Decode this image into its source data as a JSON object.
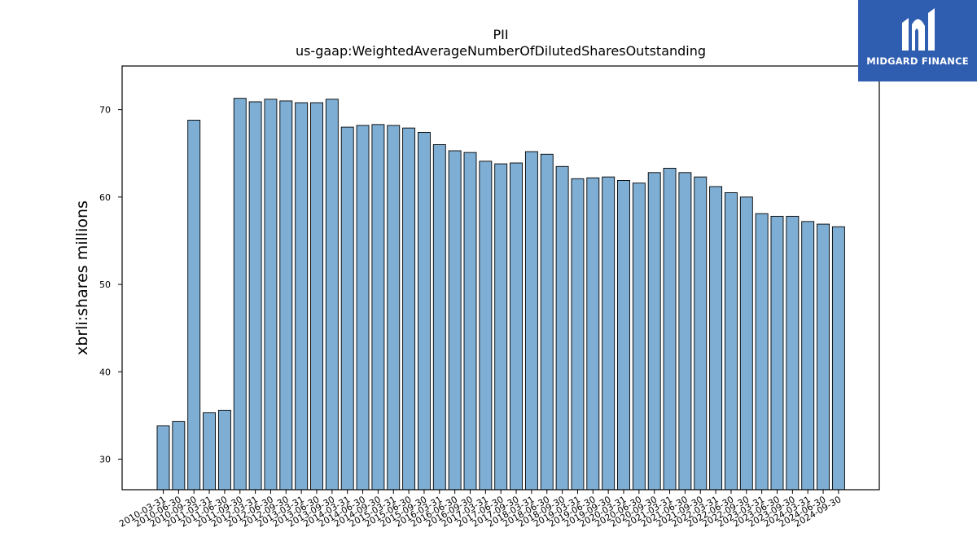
{
  "logo": {
    "text": "MIDGARD FINANCE"
  },
  "chart_data": {
    "type": "bar",
    "title": "PII",
    "subtitle": "us-gaap:WeightedAverageNumberOfDilutedSharesOutstanding",
    "xlabel": "",
    "ylabel": "xbrli:shares millions",
    "ylim": [
      26.5,
      75
    ],
    "yticks": [
      30,
      40,
      50,
      60,
      70
    ],
    "grid": false,
    "colors": {
      "bar_fill": "#7eaed3",
      "bar_edge": "#000000"
    },
    "categories": [
      "2010-03-31",
      "2010-06-30",
      "2010-09-30",
      "2011-03-31",
      "2011-06-30",
      "2011-09-30",
      "2012-03-31",
      "2012-06-30",
      "2012-09-30",
      "2013-03-31",
      "2013-06-30",
      "2013-09-30",
      "2014-03-31",
      "2014-06-30",
      "2014-09-30",
      "2015-03-31",
      "2015-06-30",
      "2015-09-30",
      "2016-03-31",
      "2016-06-30",
      "2016-09-30",
      "2017-03-31",
      "2017-06-30",
      "2017-09-30",
      "2018-03-31",
      "2018-06-30",
      "2018-09-30",
      "2019-03-31",
      "2019-06-30",
      "2019-09-30",
      "2020-03-31",
      "2020-06-30",
      "2020-09-30",
      "2021-03-31",
      "2021-06-30",
      "2021-09-30",
      "2022-03-31",
      "2022-06-30",
      "2022-09-30",
      "2023-03-31",
      "2023-06-30",
      "2023-09-30",
      "2024-03-31",
      "2024-06-30",
      "2024-09-30"
    ],
    "values": [
      33.8,
      34.3,
      68.8,
      35.3,
      35.6,
      71.3,
      70.9,
      71.2,
      71.0,
      70.8,
      70.8,
      71.2,
      68.0,
      68.2,
      68.3,
      68.2,
      67.9,
      67.4,
      66.0,
      65.3,
      65.1,
      64.1,
      63.8,
      63.9,
      65.2,
      64.9,
      63.5,
      62.1,
      62.2,
      62.3,
      61.9,
      61.6,
      62.8,
      63.3,
      62.8,
      62.3,
      61.2,
      60.5,
      60.0,
      58.1,
      57.8,
      57.8,
      57.2,
      56.9,
      56.6
    ]
  }
}
